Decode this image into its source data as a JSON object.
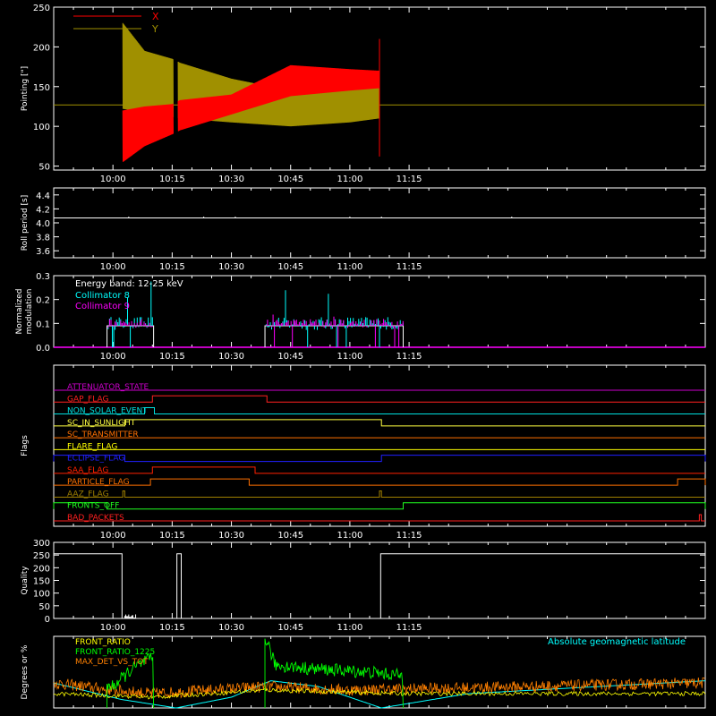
{
  "time_axis": {
    "start_min": 585,
    "end_min": 750,
    "tick_labels": [
      "10:00",
      "10:15",
      "10:30",
      "10:45",
      "11:00",
      "11:15"
    ],
    "tick_values_min": [
      600,
      615,
      630,
      645,
      660,
      675
    ]
  },
  "chart_data": [
    {
      "id": "pointing",
      "type": "line",
      "ylabel": "Pointing [\"]",
      "ylim": [
        45,
        250
      ],
      "yticks": [
        "50",
        "100",
        "150",
        "200",
        "250"
      ],
      "ytick_values": [
        50,
        100,
        150,
        200,
        250
      ],
      "legend": [
        {
          "name": "X",
          "color": "#ff0000"
        },
        {
          "name": "Y",
          "color": "#a09000"
        }
      ],
      "baseline": 127,
      "segments": [
        {
          "t_start": 602.5,
          "t_end": 615.3
        },
        {
          "t_start": 616.5,
          "t_end": 667.5
        }
      ],
      "series": [
        {
          "name": "X",
          "color": "#ff0000",
          "envelope": [
            {
              "t": 602.5,
              "low": 55,
              "high": 120
            },
            {
              "t": 608,
              "low": 75,
              "high": 125
            },
            {
              "t": 615,
              "low": 90,
              "high": 128
            },
            {
              "t": 617,
              "low": 95,
              "high": 133
            },
            {
              "t": 630,
              "low": 115,
              "high": 140
            },
            {
              "t": 645,
              "low": 138,
              "high": 177
            },
            {
              "t": 660,
              "low": 145,
              "high": 172
            },
            {
              "t": 667.5,
              "low": 148,
              "high": 170
            }
          ]
        },
        {
          "name": "Y",
          "color": "#a09000",
          "envelope": [
            {
              "t": 602.5,
              "low": 122,
              "high": 230
            },
            {
              "t": 608,
              "low": 118,
              "high": 195
            },
            {
              "t": 615,
              "low": 112,
              "high": 185
            },
            {
              "t": 617,
              "low": 110,
              "high": 180
            },
            {
              "t": 630,
              "low": 105,
              "high": 160
            },
            {
              "t": 645,
              "low": 100,
              "high": 145
            },
            {
              "t": 660,
              "low": 105,
              "high": 150
            },
            {
              "t": 667.5,
              "low": 110,
              "high": 155
            }
          ]
        }
      ]
    },
    {
      "id": "roll",
      "type": "line",
      "ylabel": "Roll period [s]",
      "ylim": [
        3.5,
        4.5
      ],
      "yticks": [
        "3.6",
        "3.8",
        "4.0",
        "4.2",
        "4.4"
      ],
      "ytick_values": [
        3.6,
        3.8,
        4.0,
        4.2,
        4.4
      ],
      "series": [
        {
          "name": "",
          "color": "#ffffff",
          "x": [
            585,
            750
          ],
          "y": [
            4.07,
            4.07
          ]
        }
      ]
    },
    {
      "id": "modulation",
      "type": "line",
      "ylabel": [
        "Normalized",
        "modulation"
      ],
      "ylim": [
        0,
        0.3
      ],
      "yticks": [
        "0.0",
        "0.1",
        "0.2",
        "0.3"
      ],
      "ytick_values": [
        0.0,
        0.1,
        0.2,
        0.3
      ],
      "annotation": "Energy band: 12-25 keV",
      "legend": [
        {
          "name": "Collimator 8",
          "color": "#00ffff"
        },
        {
          "name": "Collimator 9",
          "color": "#ff00ff"
        }
      ],
      "active_intervals": [
        [
          598.5,
          610.3
        ],
        [
          638.5,
          673.5
        ]
      ],
      "series": [
        {
          "name": "Collimator 8",
          "color": "#00ffff",
          "level": 0.1,
          "spread": 0.06,
          "peak": 0.28
        },
        {
          "name": "Collimator 9",
          "color": "#ff00ff",
          "level": 0.1,
          "spread": 0.04,
          "peak": 0.14
        },
        {
          "name": "",
          "color": "#ffffff",
          "level": 0.09,
          "spread": 0.0,
          "peak": 0.09
        }
      ]
    },
    {
      "id": "flags",
      "type": "line",
      "ylabel": "Flags",
      "flags": [
        {
          "name": "ATTENUATOR_STATE",
          "color": "#cc00cc",
          "transitions": []
        },
        {
          "name": "GAP_FLAG",
          "color": "#ff2020",
          "transitions": [
            [
              610,
              639
            ]
          ]
        },
        {
          "name": "NON_SOLAR_EVENT",
          "color": "#00e0e0",
          "transitions": [
            [
              608,
              610.5
            ]
          ]
        },
        {
          "name": "SC_IN_SUNLIGHT",
          "color": "#ffff40",
          "transitions": [
            [
              603,
              668
            ]
          ]
        },
        {
          "name": "SC_TRANSMITTER",
          "color": "#ff7000",
          "transitions": []
        },
        {
          "name": "FLARE_FLAG",
          "color": "#ffff00",
          "transitions": []
        },
        {
          "name": "ECLIPSE_FLAG",
          "color": "#2020ff",
          "transitions": [
            [
              585,
              603
            ],
            [
              668,
              750
            ]
          ]
        },
        {
          "name": "SAA_FLAG",
          "color": "#ff2000",
          "transitions": [
            [
              610,
              636
            ]
          ]
        },
        {
          "name": "PARTICLE_FLAG",
          "color": "#ff7000",
          "transitions": [
            [
              609.5,
              634.5
            ],
            [
              743,
              750
            ]
          ]
        },
        {
          "name": "AAZ_FLAG",
          "color": "#a08000",
          "transitions": [
            [
              602.5,
              603
            ],
            [
              667.5,
              668
            ]
          ]
        },
        {
          "name": "FRONTS_OFF",
          "color": "#20ff20",
          "transitions": [
            [
              585,
              598.5
            ],
            [
              673.5,
              750
            ]
          ]
        },
        {
          "name": "BAD_PACKETS",
          "color": "#ff2020",
          "transitions": [
            [
              748.5,
              749
            ]
          ]
        }
      ]
    },
    {
      "id": "quality",
      "type": "line",
      "ylabel": "Quality",
      "ylim": [
        0,
        300
      ],
      "yticks": [
        "0",
        "50",
        "100",
        "150",
        "200",
        "250",
        "300"
      ],
      "ytick_values": [
        0,
        50,
        100,
        150,
        200,
        250,
        300
      ],
      "series": [
        {
          "name": "",
          "color": "#ffffff",
          "x": [
            585,
            602.3,
            602.3,
            616.2,
            616.2,
            617.3,
            617.3,
            667.8,
            667.8,
            750
          ],
          "y": [
            255,
            255,
            0,
            0,
            255,
            255,
            0,
            0,
            255,
            255
          ]
        }
      ]
    },
    {
      "id": "ratios",
      "type": "line",
      "ylabel": "Degrees or %",
      "ylim": [
        0,
        100
      ],
      "legend": [
        {
          "name": "FRONT_RATIO",
          "color": "#ffff00"
        },
        {
          "name": "FRONT_RATIO_1225",
          "color": "#00ff00"
        },
        {
          "name": "MAX_DET_VS_TOT",
          "color": "#ff8000"
        }
      ],
      "annotation": "Absolute geomagnetic latitude",
      "annotation_color": "#00ffff",
      "series": [
        {
          "name": "FRONT_RATIO_1225",
          "color": "#00ff00",
          "intervals": [
            [
              598.5,
              610.3
            ],
            [
              638.5,
              673.5
            ]
          ],
          "levels": [
            [
              600,
              30
            ],
            [
              605,
              55
            ],
            [
              610,
              70
            ],
            [
              639,
              95
            ],
            [
              641,
              60
            ],
            [
              650,
              55
            ],
            [
              665,
              50
            ],
            [
              673,
              45
            ]
          ]
        },
        {
          "name": "MAX_DET_VS_TOT",
          "color": "#ff8000",
          "levels": [
            [
              585,
              35
            ],
            [
              600,
              25
            ],
            [
              610,
              20
            ],
            [
              639,
              30
            ],
            [
              660,
              25
            ],
            [
              750,
              35
            ]
          ]
        },
        {
          "name": "FRONT_RATIO",
          "color": "#ffff00",
          "levels": [
            [
              585,
              20
            ],
            [
              610,
              15
            ],
            [
              639,
              25
            ],
            [
              673,
              20
            ],
            [
              750,
              20
            ]
          ]
        },
        {
          "name": "Absolute geomagnetic latitude",
          "color": "#00ffff",
          "geomag": [
            [
              585,
              35
            ],
            [
              602,
              12
            ],
            [
              616,
              0
            ],
            [
              630,
              15
            ],
            [
              640,
              38
            ],
            [
              652,
              30
            ],
            [
              668,
              0
            ],
            [
              690,
              20
            ],
            [
              750,
              38
            ]
          ]
        }
      ]
    }
  ]
}
